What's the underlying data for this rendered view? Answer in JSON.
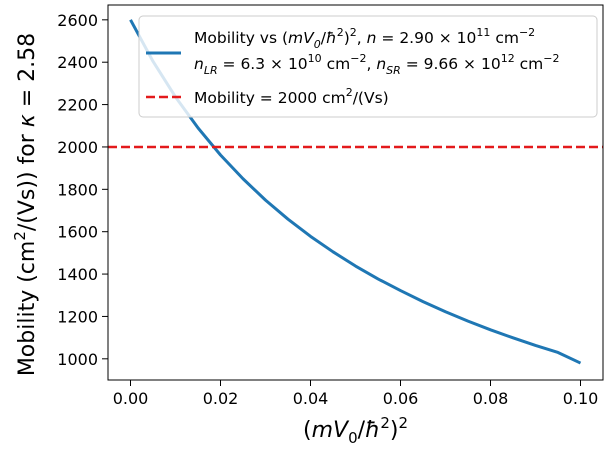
{
  "chart_data": {
    "type": "line",
    "title": "",
    "xlabel": "(mV₀/ħ²)²",
    "ylabel": "Mobility (cm²/(Vs)) for  κ = 2.58",
    "xlim": [
      -0.005,
      0.105
    ],
    "ylim": [
      900,
      2670
    ],
    "xticks": [
      0.0,
      0.02,
      0.04,
      0.06,
      0.08,
      0.1
    ],
    "xtick_labels": [
      "0.00",
      "0.02",
      "0.04",
      "0.06",
      "0.08",
      "0.10"
    ],
    "yticks": [
      1000,
      1200,
      1400,
      1600,
      1800,
      2000,
      2200,
      2400,
      2600
    ],
    "ytick_labels": [
      "1000",
      "1200",
      "1400",
      "1600",
      "1800",
      "2000",
      "2200",
      "2400",
      "2600"
    ],
    "grid": false,
    "legend_position": "top-right",
    "series": [
      {
        "name": "Mobility vs (mV₀/ħ²)², n = 2.90 × 10¹¹ cm⁻²",
        "name_line2": "n_LR = 6.3 × 10¹⁰ cm⁻²,  n_SR = 9.66 × 10¹² cm⁻²",
        "color": "#1f77b4",
        "style": "solid",
        "x": [
          0.0,
          0.005,
          0.01,
          0.015,
          0.02,
          0.025,
          0.03,
          0.035,
          0.04,
          0.045,
          0.05,
          0.055,
          0.06,
          0.065,
          0.07,
          0.075,
          0.08,
          0.085,
          0.09,
          0.095,
          0.1
        ],
        "y": [
          2600,
          2404,
          2236,
          2090,
          1962,
          1850,
          1749,
          1659,
          1578,
          1505,
          1438,
          1377,
          1322,
          1270,
          1222,
          1178,
          1137,
          1099,
          1063,
          1030,
          980
        ]
      },
      {
        "name": "Mobility = 2000 cm²/(Vs)",
        "color": "#e31a1c",
        "style": "dashed",
        "y_constant": 2000
      }
    ]
  }
}
